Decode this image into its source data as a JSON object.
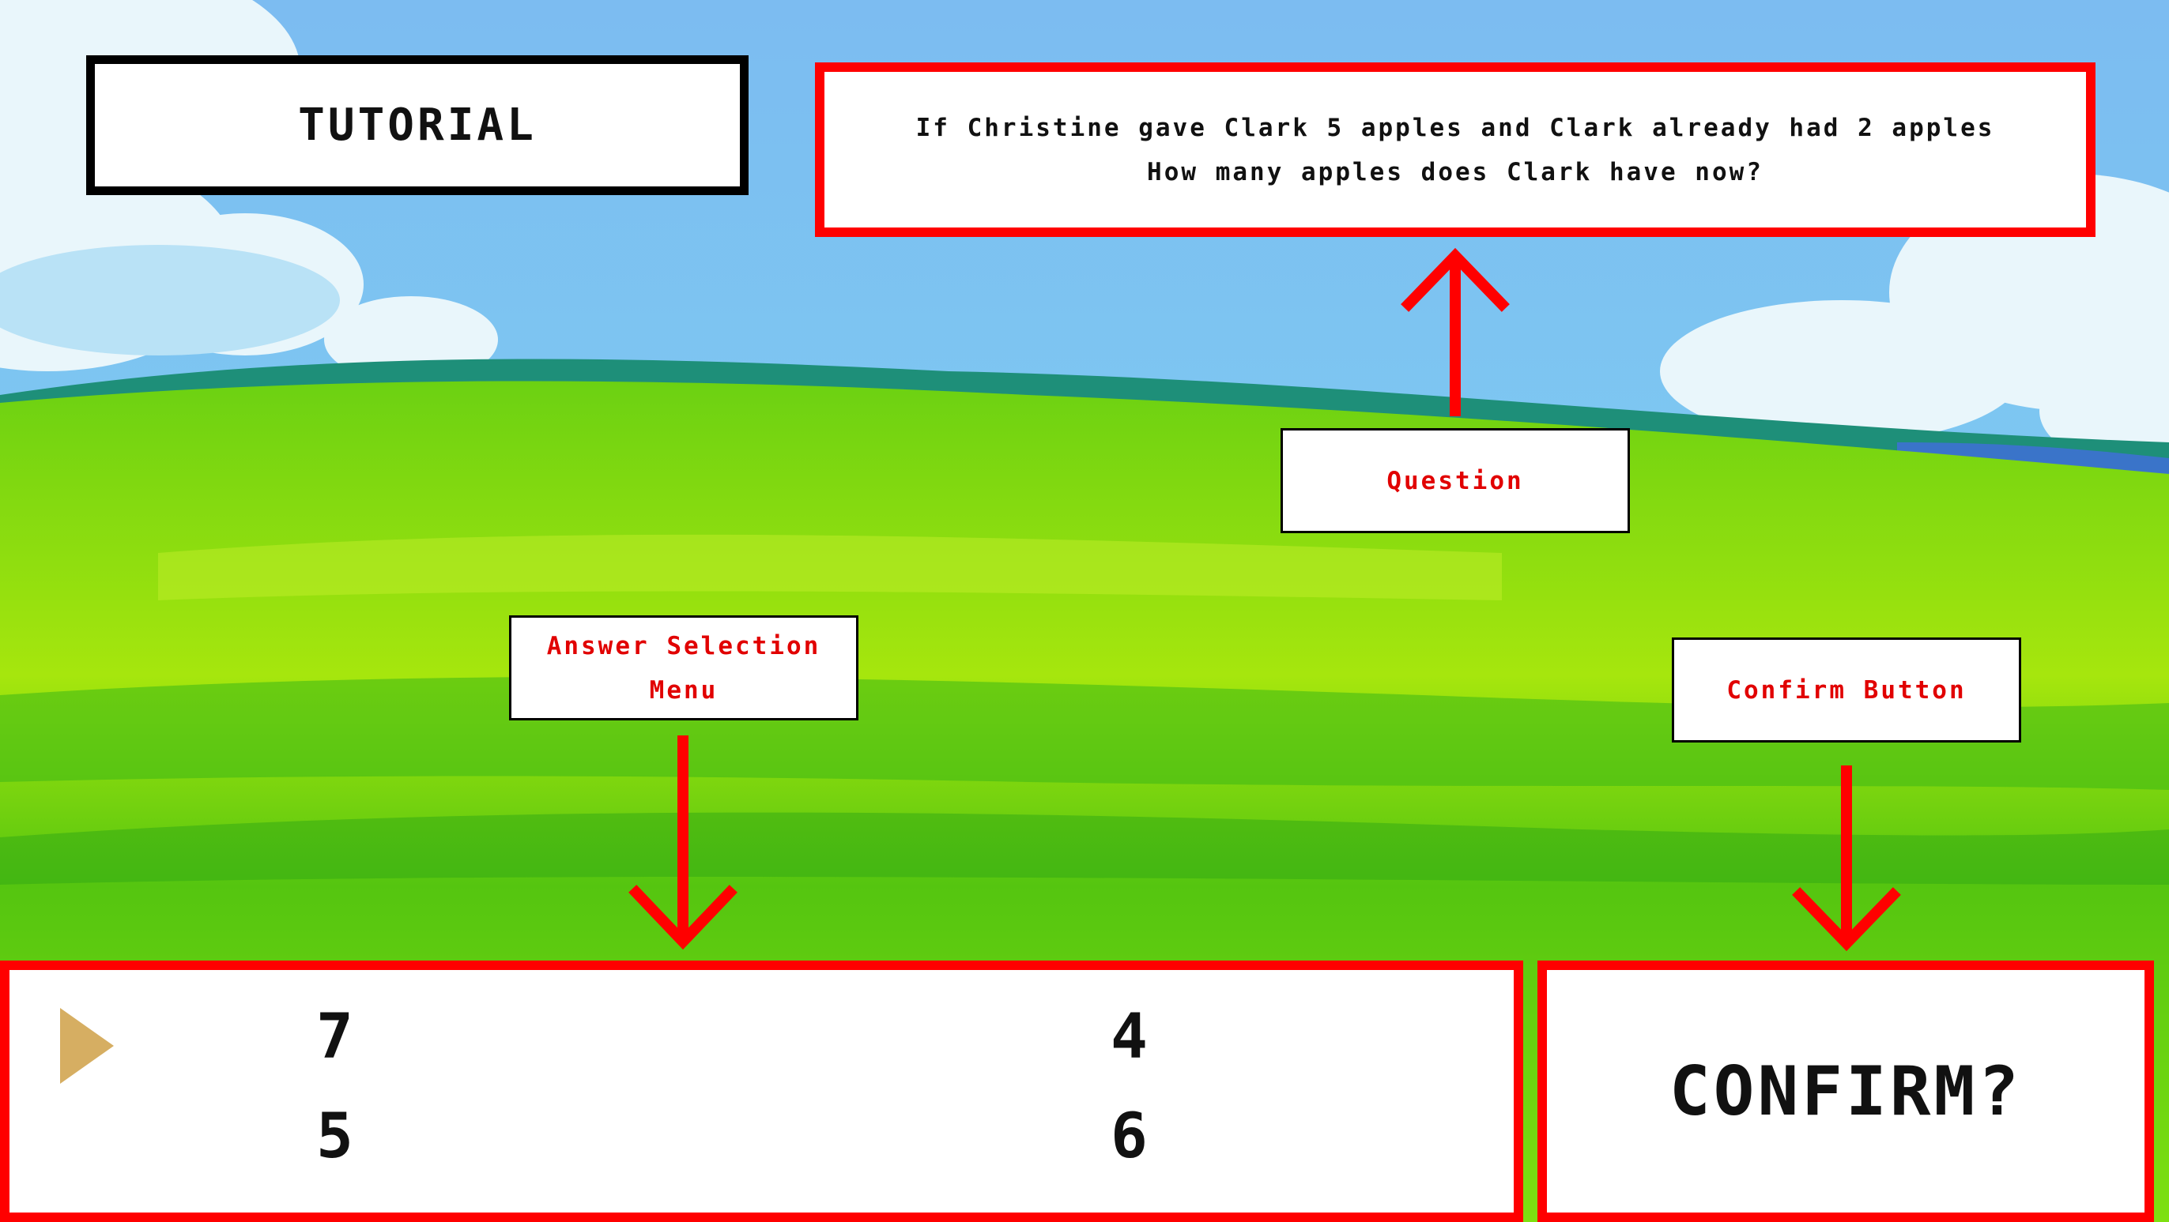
{
  "title": "TUTORIAL",
  "question": {
    "line1": "If Christine gave Clark 5 apples and Clark already had 2 apples",
    "line2": "How many apples does Clark have now?"
  },
  "labels": {
    "question": "Question",
    "answer_line1": "Answer Selection",
    "answer_line2": "Menu",
    "confirm": "Confirm Button"
  },
  "answers": {
    "selected": "7",
    "options": [
      "7",
      "4",
      "5",
      "6"
    ]
  },
  "confirm_label": "CONFIRM?",
  "colors": {
    "annotation": "#ff0000",
    "cursor": "#d6ae62",
    "sky": "#79c3ef",
    "grass": "#74d90e"
  }
}
